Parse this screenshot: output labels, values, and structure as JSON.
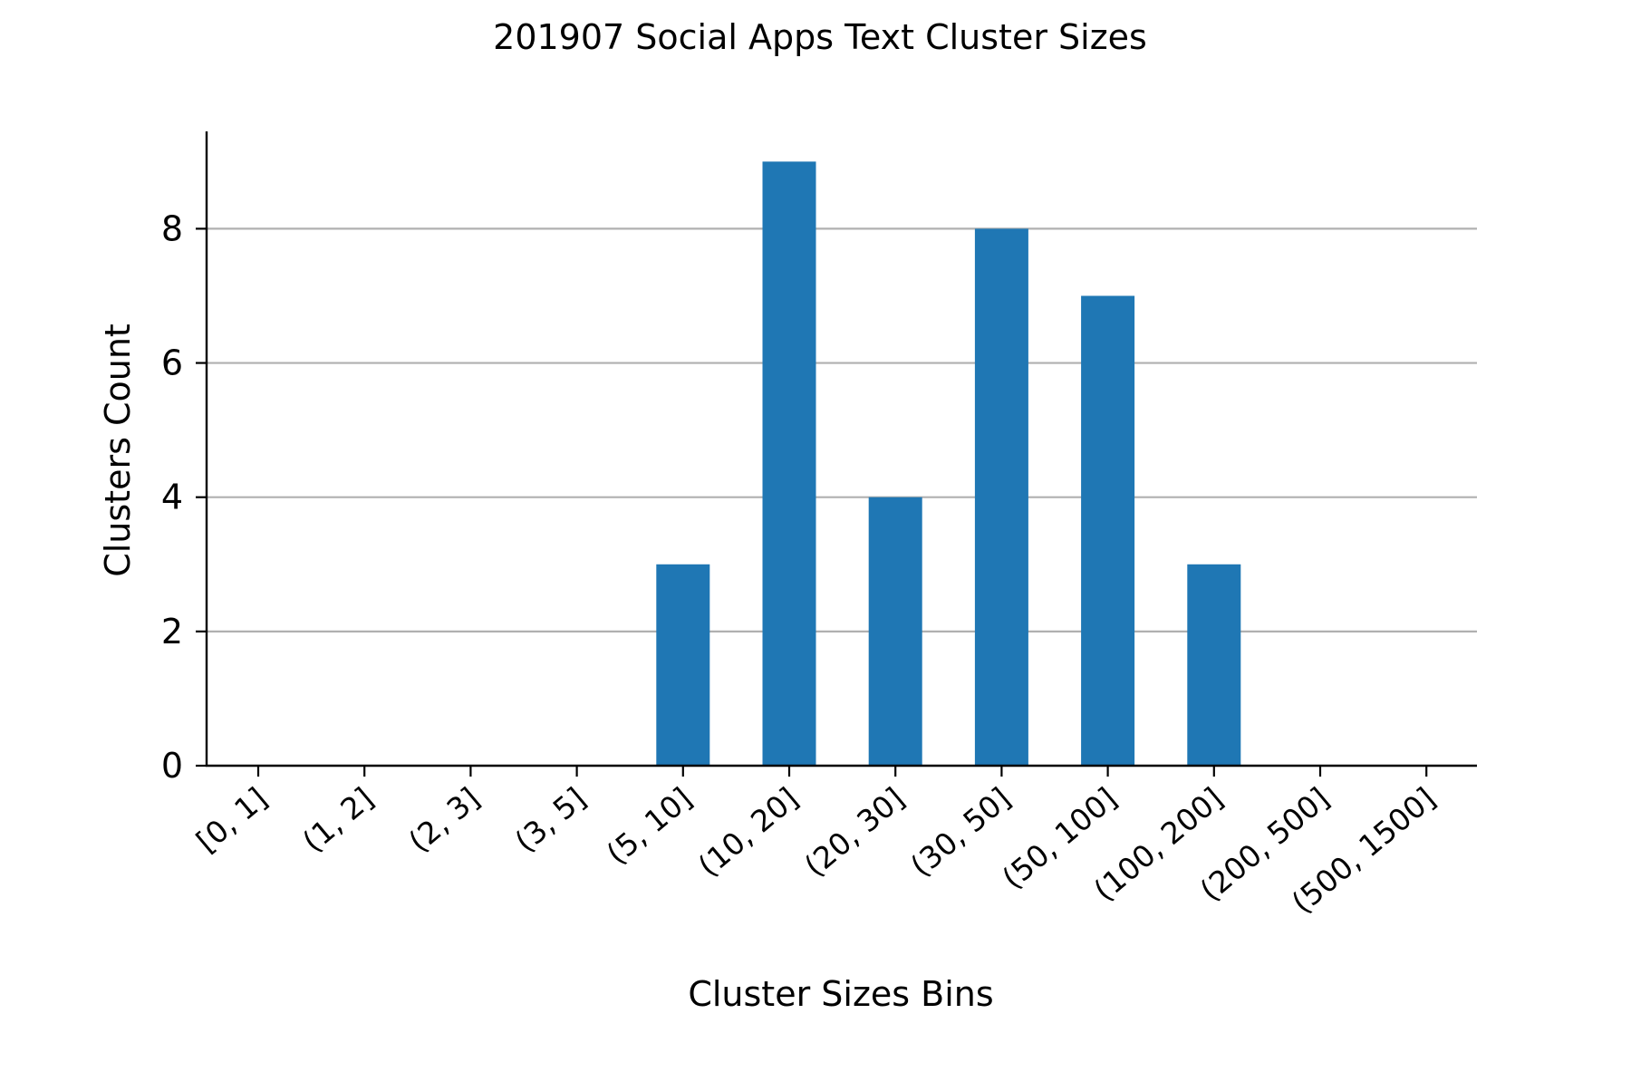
{
  "colors": {
    "bar": "#1f77b4",
    "grid": "#b0b0b0",
    "axis": "#000000"
  },
  "chart_data": {
    "type": "bar",
    "title": "201907 Social Apps Text Cluster Sizes",
    "xlabel": "Cluster Sizes Bins",
    "ylabel": "Clusters Count",
    "categories": [
      "[0, 1]",
      "(1, 2]",
      "(2, 3]",
      "(3, 5]",
      "(5, 10]",
      "(10, 20]",
      "(20, 30]",
      "(30, 50]",
      "(50, 100]",
      "(100, 200]",
      "(200, 500]",
      "(500, 1500]"
    ],
    "values": [
      0,
      0,
      0,
      0,
      3,
      9,
      4,
      8,
      7,
      3,
      0,
      0
    ],
    "ylim": [
      0,
      9.45
    ],
    "yticks": [
      "0",
      "2",
      "4",
      "6",
      "8"
    ],
    "grid": "y-major",
    "legend": "none"
  }
}
